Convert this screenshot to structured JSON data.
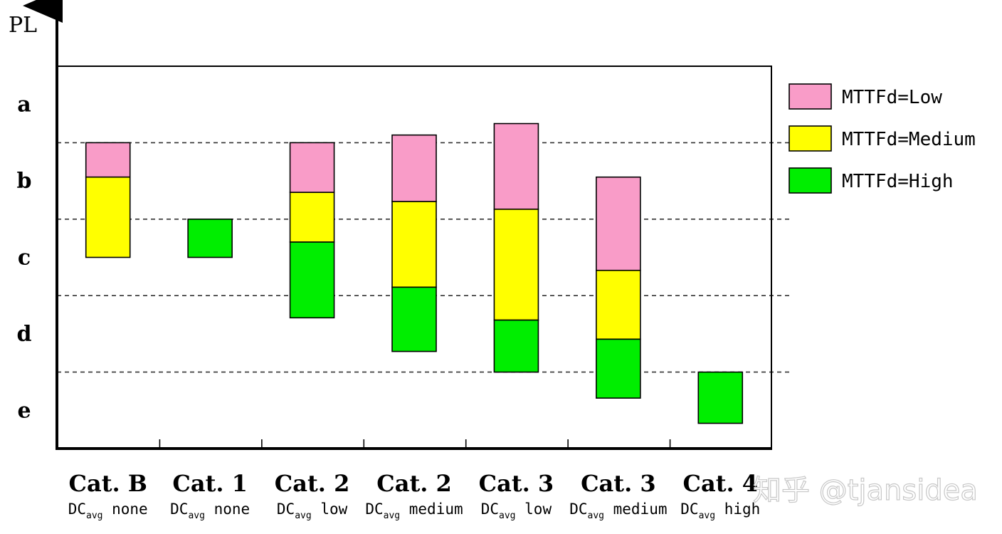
{
  "chart_data": {
    "type": "bar",
    "ylabel": "PL",
    "y_levels": [
      "a",
      "b",
      "c",
      "d",
      "e"
    ],
    "categories": [
      {
        "cat": "Cat. B",
        "dc_prefix": "DC",
        "dc_sub": "avg",
        "dc_value": "none"
      },
      {
        "cat": "Cat. 1",
        "dc_prefix": "DC",
        "dc_sub": "avg",
        "dc_value": "none"
      },
      {
        "cat": "Cat. 2",
        "dc_prefix": "DC",
        "dc_sub": "avg",
        "dc_value": "low"
      },
      {
        "cat": "Cat. 2",
        "dc_prefix": "DC",
        "dc_sub": "avg",
        "dc_value": "medium"
      },
      {
        "cat": "Cat. 3",
        "dc_prefix": "DC",
        "dc_sub": "avg",
        "dc_value": "low"
      },
      {
        "cat": "Cat. 3",
        "dc_prefix": "DC",
        "dc_sub": "avg",
        "dc_value": "medium"
      },
      {
        "cat": "Cat. 4",
        "dc_prefix": "DC",
        "dc_sub": "avg",
        "dc_value": "high"
      }
    ],
    "y_axis_note": "PL scale: 0 = bottom of e, 5 = top of a; level boundaries at integers",
    "series": [
      {
        "name": "MTTFd=Low",
        "color": "#f99cc8",
        "ranges": [
          [
            3.55,
            4.0
          ],
          [
            null,
            null
          ],
          [
            3.35,
            4.0
          ],
          [
            3.23,
            4.1
          ],
          [
            3.13,
            4.25
          ],
          [
            2.33,
            3.55
          ],
          [
            null,
            null
          ]
        ]
      },
      {
        "name": "MTTFd=Medium",
        "color": "#ffff00",
        "ranges": [
          [
            2.5,
            3.55
          ],
          [
            null,
            null
          ],
          [
            2.7,
            3.35
          ],
          [
            2.11,
            3.23
          ],
          [
            1.68,
            3.13
          ],
          [
            1.43,
            2.33
          ],
          [
            null,
            null
          ]
        ]
      },
      {
        "name": "MTTFd=High",
        "color": "#00ee00",
        "ranges": [
          [
            null,
            null
          ],
          [
            2.5,
            3.0
          ],
          [
            1.71,
            2.7
          ],
          [
            1.27,
            2.11
          ],
          [
            1.0,
            1.68
          ],
          [
            0.66,
            1.43
          ],
          [
            0.33,
            1.0
          ]
        ]
      }
    ],
    "grid": "dashed lines between PL levels",
    "legend_position": "right"
  },
  "watermark": "知乎 @tjansidea"
}
